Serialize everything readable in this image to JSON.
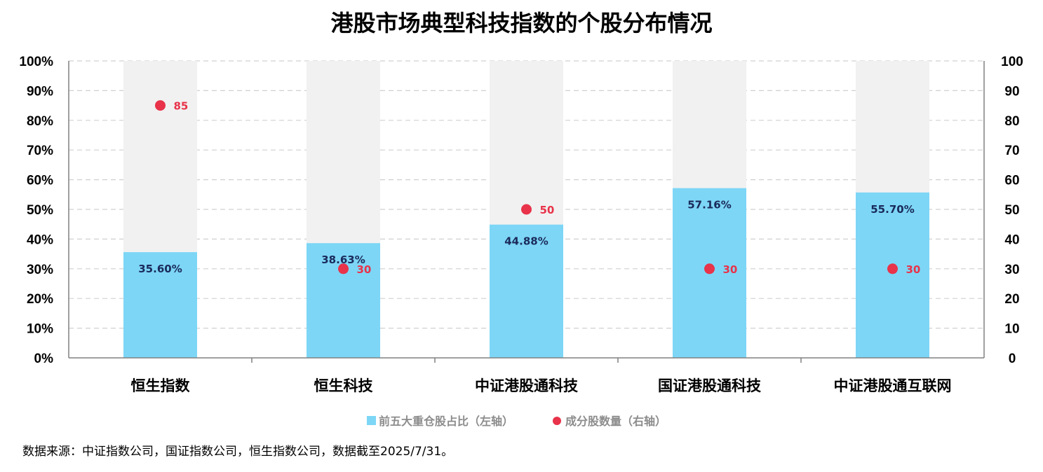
{
  "title": "港股市场典型科技指数的个股分布情况",
  "source_note": "数据来源：中证指数公司，国证指数公司，恒生指数公司，数据截至2025/7/31。",
  "colors": {
    "bar": "#7dd6f6",
    "background_bar": "#f1f1f1",
    "dot": "#e8334a",
    "bar_label": "#1a2a5a",
    "grid": "#d0d0d0",
    "axis": "#808080"
  },
  "chart_data": {
    "type": "bar",
    "categories": [
      "恒生指数",
      "恒生科技",
      "中证港股通科技",
      "国证港股通科技",
      "中证港股通互联网"
    ],
    "series": [
      {
        "name": "前五大重仓股占比（左轴）",
        "type": "bar",
        "axis": "left",
        "values": [
          35.6,
          38.63,
          44.88,
          57.16,
          55.7
        ],
        "labels": [
          "35.60%",
          "38.63%",
          "44.88%",
          "57.16%",
          "55.70%"
        ]
      },
      {
        "name": "成分股数量（右轴）",
        "type": "scatter",
        "axis": "right",
        "values": [
          85,
          30,
          50,
          30,
          30
        ],
        "labels": [
          "85",
          "30",
          "50",
          "30",
          "30"
        ]
      }
    ],
    "left_axis": {
      "min": 0,
      "max": 100,
      "ticks": [
        "0%",
        "10%",
        "20%",
        "30%",
        "40%",
        "50%",
        "60%",
        "70%",
        "80%",
        "90%",
        "100%"
      ]
    },
    "right_axis": {
      "min": 0,
      "max": 100,
      "ticks": [
        "0",
        "10",
        "20",
        "30",
        "40",
        "50",
        "60",
        "70",
        "80",
        "90",
        "100"
      ]
    },
    "background_bars": true,
    "grid": true,
    "legend": "bottom"
  }
}
